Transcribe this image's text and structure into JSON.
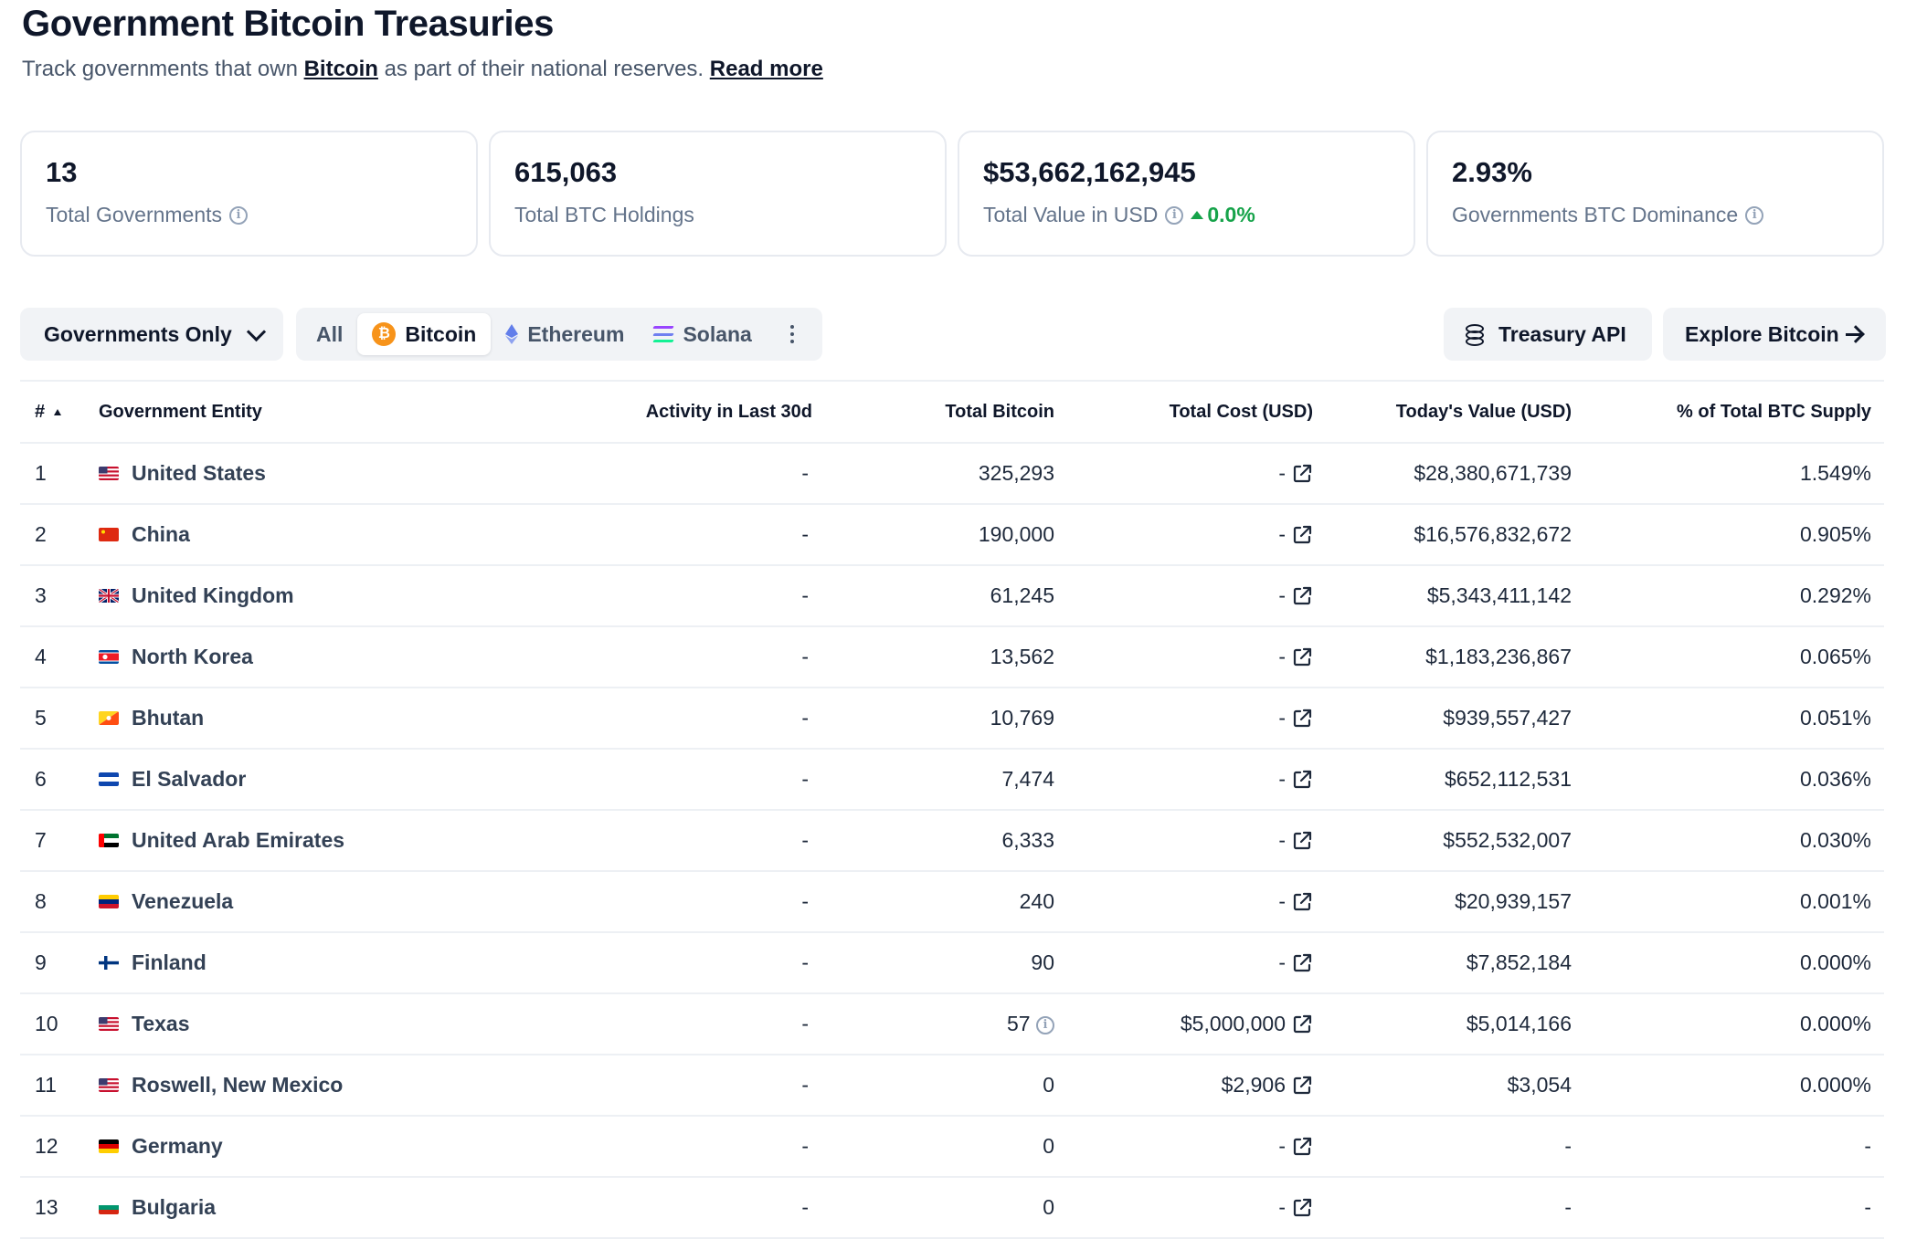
{
  "header": {
    "title": "Government Bitcoin Treasuries",
    "subtitle_prefix": "Track governments that own ",
    "subtitle_link": "Bitcoin",
    "subtitle_middle": " as part of their national reserves. ",
    "read_more": "Read more"
  },
  "stats": [
    {
      "value": "13",
      "label": "Total Governments",
      "info": true
    },
    {
      "value": "615,063",
      "label": "Total BTC Holdings",
      "info": false
    },
    {
      "value": "$53,662,162,945",
      "label": "Total Value in USD",
      "info": true,
      "delta": "0.0%"
    },
    {
      "value": "2.93%",
      "label": "Governments BTC Dominance",
      "info": true
    }
  ],
  "toolbar": {
    "dropdown_label": "Governments Only",
    "segments": {
      "all": "All",
      "bitcoin": "Bitcoin",
      "ethereum": "Ethereum",
      "solana": "Solana",
      "active": "Bitcoin"
    },
    "api_label": "Treasury API",
    "explore_label": "Explore Bitcoin"
  },
  "table": {
    "headers": {
      "rank": "#",
      "entity": "Government Entity",
      "activity": "Activity in Last 30d",
      "total_btc": "Total Bitcoin",
      "cost": "Total Cost (USD)",
      "value": "Today's Value (USD)",
      "supply": "% of Total BTC Supply"
    },
    "rows": [
      {
        "rank": "1",
        "name": "United States",
        "flag": "us",
        "activity": "-",
        "btc": "325,293",
        "cost": "-",
        "value": "$28,380,671,739",
        "supply": "1.549%"
      },
      {
        "rank": "2",
        "name": "China",
        "flag": "cn",
        "activity": "-",
        "btc": "190,000",
        "cost": "-",
        "value": "$16,576,832,672",
        "supply": "0.905%"
      },
      {
        "rank": "3",
        "name": "United Kingdom",
        "flag": "gb",
        "activity": "-",
        "btc": "61,245",
        "cost": "-",
        "value": "$5,343,411,142",
        "supply": "0.292%"
      },
      {
        "rank": "4",
        "name": "North Korea",
        "flag": "kp",
        "activity": "-",
        "btc": "13,562",
        "cost": "-",
        "value": "$1,183,236,867",
        "supply": "0.065%"
      },
      {
        "rank": "5",
        "name": "Bhutan",
        "flag": "bt",
        "activity": "-",
        "btc": "10,769",
        "cost": "-",
        "value": "$939,557,427",
        "supply": "0.051%"
      },
      {
        "rank": "6",
        "name": "El Salvador",
        "flag": "sv",
        "activity": "-",
        "btc": "7,474",
        "cost": "-",
        "value": "$652,112,531",
        "supply": "0.036%"
      },
      {
        "rank": "7",
        "name": "United Arab Emirates",
        "flag": "ae",
        "activity": "-",
        "btc": "6,333",
        "cost": "-",
        "value": "$552,532,007",
        "supply": "0.030%"
      },
      {
        "rank": "8",
        "name": "Venezuela",
        "flag": "ve",
        "activity": "-",
        "btc": "240",
        "cost": "-",
        "value": "$20,939,157",
        "supply": "0.001%"
      },
      {
        "rank": "9",
        "name": "Finland",
        "flag": "fi",
        "activity": "-",
        "btc": "90",
        "cost": "-",
        "value": "$7,852,184",
        "supply": "0.000%"
      },
      {
        "rank": "10",
        "name": "Texas",
        "flag": "us",
        "activity": "-",
        "btc": "57",
        "btc_info": true,
        "cost": "$5,000,000",
        "value": "$5,014,166",
        "supply": "0.000%"
      },
      {
        "rank": "11",
        "name": "Roswell, New Mexico",
        "flag": "us",
        "activity": "-",
        "btc": "0",
        "cost": "$2,906",
        "value": "$3,054",
        "supply": "0.000%"
      },
      {
        "rank": "12",
        "name": "Germany",
        "flag": "de",
        "activity": "-",
        "btc": "0",
        "cost": "-",
        "value": "-",
        "supply": "-"
      },
      {
        "rank": "13",
        "name": "Bulgaria",
        "flag": "bg",
        "activity": "-",
        "btc": "0",
        "cost": "-",
        "value": "-",
        "supply": "-"
      }
    ]
  },
  "colors": {
    "positive": "#16a34a",
    "bitcoin": "#f7931a",
    "ethereum": "#627eea"
  }
}
